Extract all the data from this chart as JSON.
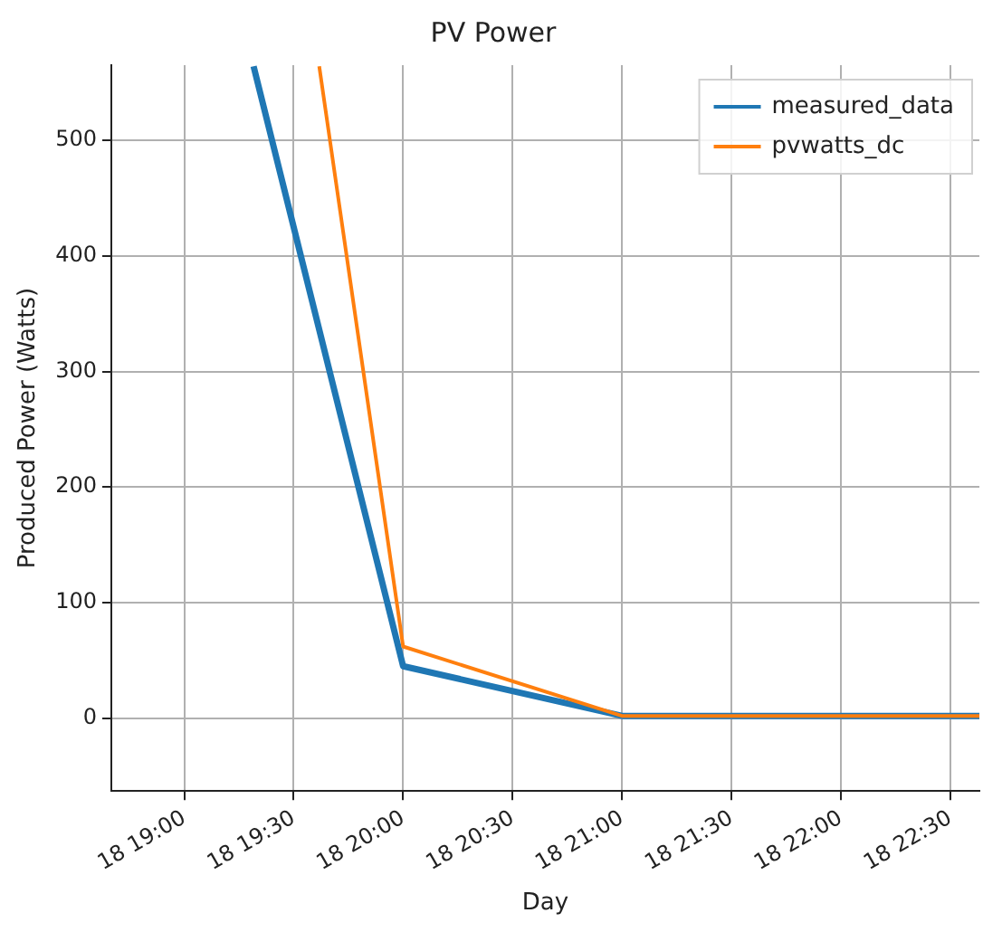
{
  "chart_data": {
    "type": "line",
    "title": "PV Power",
    "xlabel": "Day",
    "ylabel": "Produced Power (Watts)",
    "series": [
      {
        "name": "measured_data",
        "color": "#1f77b4",
        "x": [
          "--01-18T19:19",
          "--01-18T20:00",
          "--01-18T21:00",
          "--01-18T22:00",
          "--01-18T22:38"
        ],
        "values": [
          564,
          45,
          2,
          2,
          2
        ]
      },
      {
        "name": "pvwatts_dc",
        "color": "#ff7f0e",
        "x": [
          "--01-18T19:37",
          "--01-18T20:00",
          "--01-18T21:00",
          "--01-18T22:00",
          "--01-18T22:38"
        ],
        "values": [
          564,
          62,
          2,
          2,
          2
        ]
      }
    ],
    "xlim": [
      "--01-18T18:40",
      "--01-18T22:38"
    ],
    "xticks": [
      {
        "value": "--01-18T19:00",
        "label": "18 19:00"
      },
      {
        "value": "--01-18T19:30",
        "label": "18 19:30"
      },
      {
        "value": "--01-18T20:00",
        "label": "18 20:00"
      },
      {
        "value": "--01-18T20:30",
        "label": "18 20:30"
      },
      {
        "value": "--01-18T21:00",
        "label": "18 21:00"
      },
      {
        "value": "--01-18T21:30",
        "label": "18 21:30"
      },
      {
        "value": "--01-18T22:00",
        "label": "18 22:00"
      },
      {
        "value": "--01-18T22:30",
        "label": "18 22:30"
      }
    ],
    "ylim": [
      -63,
      565
    ],
    "yticks": [
      0,
      100,
      200,
      300,
      400,
      500
    ],
    "grid": true,
    "legend": "top right",
    "marker": "none",
    "line_style": "solid"
  }
}
